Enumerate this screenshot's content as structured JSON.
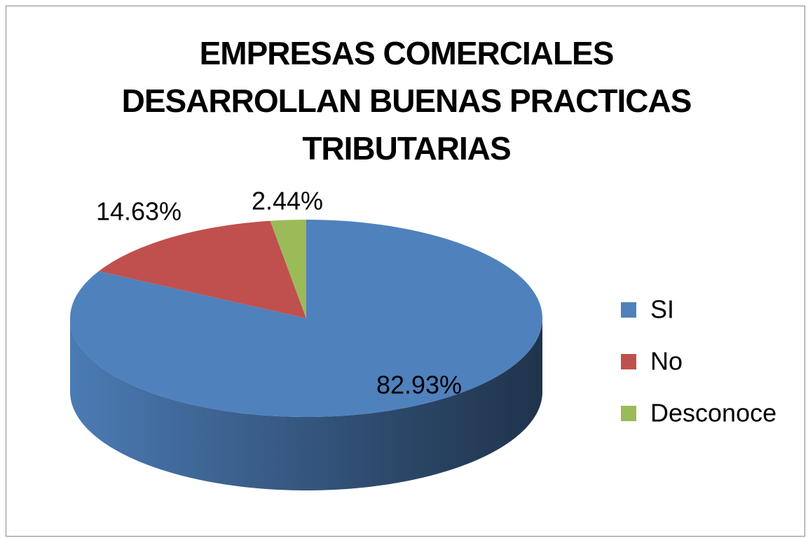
{
  "chart_data": {
    "type": "pie",
    "title": "EMPRESAS COMERCIALES DESARROLLAN BUENAS PRACTICAS TRIBUTARIAS",
    "categories": [
      "SI",
      "No",
      "Desconoce"
    ],
    "values": [
      82.93,
      14.63,
      2.44
    ],
    "value_labels": [
      "82.93%",
      "14.63%",
      "2.44%"
    ],
    "colors": [
      "#4f81bd",
      "#c0504d",
      "#9bbb59"
    ],
    "legend": "right"
  }
}
